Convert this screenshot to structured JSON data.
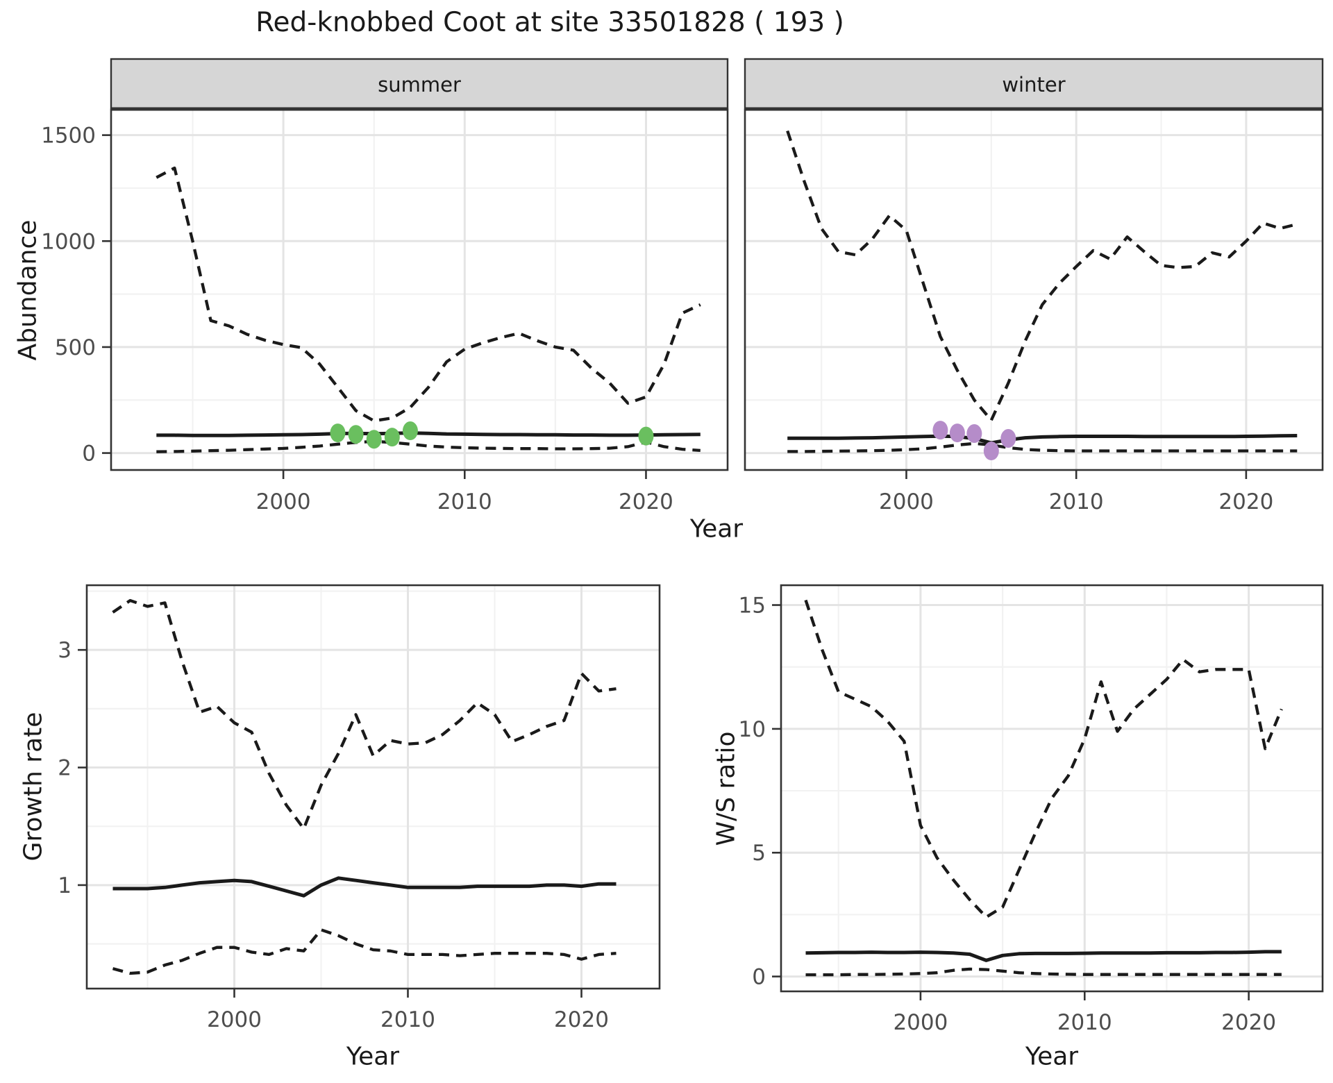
{
  "title": "Red-knobbed Coot at site 33501828 ( 193 )",
  "facets": {
    "summer": "summer",
    "winter": "winter"
  },
  "axis_titles": {
    "abundance": "Abundance",
    "year_top": "Year",
    "growth_rate": "Growth rate",
    "ws_ratio": "W/S ratio",
    "year_bottom_left": "Year",
    "year_bottom_right": "Year"
  },
  "colors": {
    "summer_points": "#6abf5f",
    "winter_points": "#b58cc9",
    "line": "#1a1a1a",
    "strip_bg": "#d6d6d6",
    "panel_border": "#333333",
    "grid_major": "#e4e4e4",
    "grid_minor": "#f2f2f2",
    "tick_label": "#4d4d4d"
  },
  "chart_data": [
    {
      "type": "line",
      "panel": "summer",
      "facet_label": "summer",
      "xlabel": "Year",
      "ylabel": "Abundance",
      "xticks": [
        2000,
        2010,
        2020
      ],
      "yticks": [
        0,
        500,
        1000,
        1500
      ],
      "xlim": [
        1990.5,
        2024.5
      ],
      "ylim": [
        -80,
        1620
      ],
      "x": [
        1993,
        1994,
        1995,
        1996,
        1997,
        1998,
        1999,
        2000,
        2001,
        2002,
        2003,
        2004,
        2005,
        2006,
        2007,
        2008,
        2009,
        2010,
        2011,
        2012,
        2013,
        2014,
        2015,
        2016,
        2017,
        2018,
        2019,
        2020,
        2021,
        2022,
        2023
      ],
      "series": [
        {
          "name": "upper-95ci",
          "style": "dashed",
          "values": [
            1300,
            1345,
            1000,
            625,
            600,
            560,
            532,
            512,
            497,
            420,
            310,
            200,
            152,
            165,
            215,
            310,
            430,
            490,
            520,
            545,
            565,
            530,
            500,
            485,
            400,
            330,
            235,
            265,
            420,
            660,
            700
          ]
        },
        {
          "name": "median",
          "style": "solid",
          "values": [
            84,
            84,
            83,
            83,
            83,
            84,
            85,
            86,
            87,
            89,
            92,
            93,
            91,
            93,
            95,
            93,
            90,
            89,
            88,
            87,
            87,
            86,
            86,
            85,
            85,
            84,
            84,
            85,
            86,
            87,
            88
          ]
        },
        {
          "name": "lower-95ci",
          "style": "dashed",
          "values": [
            6,
            7,
            9,
            11,
            13,
            16,
            19,
            22,
            27,
            33,
            42,
            50,
            55,
            50,
            42,
            33,
            28,
            25,
            23,
            22,
            21,
            21,
            20,
            20,
            21,
            23,
            30,
            52,
            30,
            18,
            12
          ]
        }
      ],
      "points": {
        "name": "summer-observations",
        "color": "#6abf5f",
        "x": [
          2003,
          2004,
          2005,
          2006,
          2007,
          2020
        ],
        "y": [
          95,
          88,
          65,
          75,
          105,
          80
        ]
      }
    },
    {
      "type": "line",
      "panel": "winter",
      "facet_label": "winter",
      "xlabel": "Year",
      "ylabel": "Abundance",
      "xticks": [
        2000,
        2010,
        2020
      ],
      "yticks": [
        0,
        500,
        1000,
        1500
      ],
      "xlim": [
        1990.5,
        2024.5
      ],
      "ylim": [
        -80,
        1620
      ],
      "x": [
        1993,
        1994,
        1995,
        1996,
        1997,
        1998,
        1999,
        2000,
        2001,
        2002,
        2003,
        2004,
        2005,
        2006,
        2007,
        2008,
        2009,
        2010,
        2011,
        2012,
        2013,
        2014,
        2015,
        2016,
        2017,
        2018,
        2019,
        2020,
        2021,
        2022,
        2023
      ],
      "series": [
        {
          "name": "upper-95ci",
          "style": "dashed",
          "values": [
            1520,
            1280,
            1060,
            950,
            935,
            1010,
            1120,
            1050,
            800,
            550,
            390,
            250,
            155,
            330,
            530,
            700,
            800,
            880,
            955,
            915,
            1020,
            950,
            885,
            875,
            880,
            945,
            925,
            1000,
            1085,
            1060,
            1080
          ]
        },
        {
          "name": "median",
          "style": "solid",
          "values": [
            70,
            70,
            70,
            70,
            71,
            72,
            74,
            76,
            78,
            80,
            78,
            68,
            48,
            62,
            72,
            76,
            78,
            79,
            79,
            79,
            79,
            78,
            78,
            78,
            78,
            78,
            78,
            79,
            80,
            81,
            82
          ]
        },
        {
          "name": "lower-95ci",
          "style": "dashed",
          "values": [
            7,
            7,
            8,
            9,
            10,
            11,
            13,
            16,
            20,
            28,
            38,
            45,
            38,
            25,
            17,
            13,
            11,
            10,
            10,
            10,
            10,
            10,
            10,
            10,
            10,
            10,
            10,
            10,
            10,
            10,
            10
          ]
        }
      ],
      "points": {
        "name": "winter-observations",
        "color": "#b58cc9",
        "x": [
          2002,
          2003,
          2004,
          2005,
          2006
        ],
        "y": [
          108,
          95,
          92,
          10,
          69
        ]
      }
    },
    {
      "type": "line",
      "panel": "growth",
      "xlabel": "Year",
      "ylabel": "Growth rate",
      "xticks": [
        2000,
        2010,
        2020
      ],
      "yticks": [
        1,
        2,
        3
      ],
      "xlim": [
        1991.5,
        2024.5
      ],
      "ylim": [
        0.12,
        3.55
      ],
      "x": [
        1993,
        1994,
        1995,
        1996,
        1997,
        1998,
        1999,
        2000,
        2001,
        2002,
        2003,
        2004,
        2005,
        2006,
        2007,
        2008,
        2009,
        2010,
        2011,
        2012,
        2013,
        2014,
        2015,
        2016,
        2017,
        2018,
        2019,
        2020,
        2021,
        2022
      ],
      "series": [
        {
          "name": "upper-95ci",
          "style": "dashed",
          "values": [
            3.32,
            3.42,
            3.37,
            3.4,
            2.9,
            2.47,
            2.52,
            2.38,
            2.3,
            1.95,
            1.68,
            1.48,
            1.85,
            2.12,
            2.45,
            2.1,
            2.23,
            2.2,
            2.21,
            2.28,
            2.4,
            2.55,
            2.45,
            2.22,
            2.28,
            2.35,
            2.4,
            2.8,
            2.65,
            2.67
          ]
        },
        {
          "name": "median",
          "style": "solid",
          "values": [
            0.97,
            0.97,
            0.97,
            0.98,
            1.0,
            1.02,
            1.03,
            1.04,
            1.03,
            0.99,
            0.95,
            0.91,
            1.0,
            1.06,
            1.04,
            1.02,
            1.0,
            0.98,
            0.98,
            0.98,
            0.98,
            0.99,
            0.99,
            0.99,
            0.99,
            1.0,
            1.0,
            0.99,
            1.01,
            1.01
          ]
        },
        {
          "name": "lower-95ci",
          "style": "dashed",
          "values": [
            0.29,
            0.25,
            0.26,
            0.32,
            0.36,
            0.42,
            0.47,
            0.47,
            0.43,
            0.41,
            0.46,
            0.44,
            0.62,
            0.57,
            0.5,
            0.45,
            0.44,
            0.41,
            0.41,
            0.41,
            0.4,
            0.41,
            0.42,
            0.42,
            0.42,
            0.42,
            0.41,
            0.37,
            0.41,
            0.42
          ]
        }
      ]
    },
    {
      "type": "line",
      "panel": "ws",
      "xlabel": "Year",
      "ylabel": "W/S ratio",
      "xticks": [
        2000,
        2010,
        2020
      ],
      "yticks": [
        0,
        5,
        10,
        15
      ],
      "xlim": [
        1991.5,
        2024.5
      ],
      "ylim": [
        -0.6,
        15.8
      ],
      "x": [
        1993,
        1994,
        1995,
        1996,
        1997,
        1998,
        1999,
        2000,
        2001,
        2002,
        2003,
        2004,
        2005,
        2006,
        2007,
        2008,
        2009,
        2010,
        2011,
        2012,
        2013,
        2014,
        2015,
        2016,
        2017,
        2018,
        2019,
        2020,
        2021,
        2022
      ],
      "series": [
        {
          "name": "upper-95ci",
          "style": "dashed",
          "values": [
            15.2,
            13.2,
            11.5,
            11.2,
            10.9,
            10.3,
            9.5,
            6.1,
            4.8,
            3.9,
            3.1,
            2.4,
            2.8,
            4.3,
            5.8,
            7.2,
            8.1,
            9.6,
            11.9,
            9.9,
            10.8,
            11.4,
            12.0,
            12.8,
            12.3,
            12.4,
            12.4,
            12.4,
            9.2,
            10.8
          ]
        },
        {
          "name": "median",
          "style": "solid",
          "values": [
            0.95,
            0.96,
            0.97,
            0.97,
            0.98,
            0.97,
            0.97,
            0.98,
            0.97,
            0.95,
            0.9,
            0.65,
            0.85,
            0.92,
            0.93,
            0.93,
            0.93,
            0.94,
            0.95,
            0.95,
            0.95,
            0.95,
            0.96,
            0.96,
            0.96,
            0.97,
            0.97,
            0.98,
            1.0,
            1.0
          ]
        },
        {
          "name": "lower-95ci",
          "style": "dashed",
          "values": [
            0.07,
            0.07,
            0.07,
            0.08,
            0.08,
            0.09,
            0.1,
            0.12,
            0.15,
            0.25,
            0.3,
            0.28,
            0.22,
            0.15,
            0.12,
            0.1,
            0.09,
            0.08,
            0.08,
            0.08,
            0.08,
            0.08,
            0.08,
            0.08,
            0.08,
            0.08,
            0.08,
            0.08,
            0.08,
            0.08
          ]
        }
      ]
    }
  ]
}
